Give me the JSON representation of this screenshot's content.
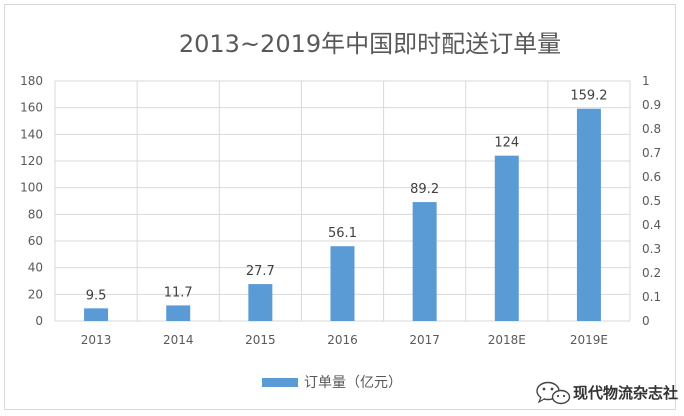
{
  "chart_data": {
    "type": "bar",
    "title": "2013~2019年中国即时配送订单量",
    "categories": [
      "2013",
      "2014",
      "2015",
      "2016",
      "2017",
      "2018E",
      "2019E"
    ],
    "series": [
      {
        "name": "订单量（亿元）",
        "values": [
          9.5,
          11.7,
          27.7,
          56.1,
          89.2,
          124,
          159.2
        ]
      }
    ],
    "data_labels": [
      "9.5",
      "11.7",
      "27.7",
      "56.1",
      "89.2",
      "124",
      "159.2"
    ],
    "ylim": [
      0,
      180
    ],
    "y_ticks": [
      "0",
      "20",
      "40",
      "60",
      "80",
      "100",
      "120",
      "140",
      "160",
      "180"
    ],
    "y2lim": [
      0,
      1
    ],
    "y2_ticks": [
      "0",
      "0.1",
      "0.2",
      "0.3",
      "0.4",
      "0.5",
      "0.6",
      "0.7",
      "0.8",
      "0.9",
      "1"
    ],
    "grid": true,
    "legend_position": "bottom",
    "bar_color": "#5b9bd5"
  },
  "watermark": {
    "text": "现代物流杂志社",
    "icon": "wechat-icon"
  }
}
